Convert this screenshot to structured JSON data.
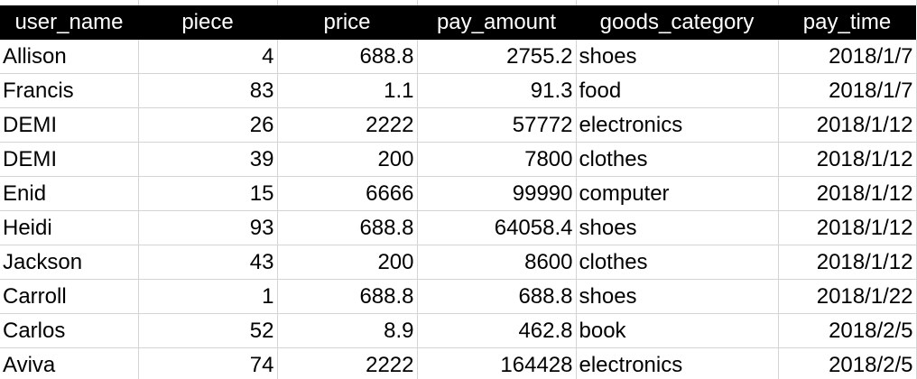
{
  "sheet": {
    "columns": [
      "user_name",
      "piece",
      "price",
      "pay_amount",
      "goods_category",
      "pay_time"
    ],
    "rows": [
      [
        "Allison",
        "4",
        "688.8",
        "2755.2",
        "shoes",
        "2018/1/7"
      ],
      [
        "Francis",
        "83",
        "1.1",
        "91.3",
        "food",
        "2018/1/7"
      ],
      [
        "DEMI",
        "26",
        "2222",
        "57772",
        "electronics",
        "2018/1/12"
      ],
      [
        "DEMI",
        "39",
        "200",
        "7800",
        "clothes",
        "2018/1/12"
      ],
      [
        "Enid",
        "15",
        "6666",
        "99990",
        "computer",
        "2018/1/12"
      ],
      [
        "Heidi",
        "93",
        "688.8",
        "64058.4",
        "shoes",
        "2018/1/12"
      ],
      [
        "Jackson",
        "43",
        "200",
        "8600",
        "clothes",
        "2018/1/12"
      ],
      [
        "Carroll",
        "1",
        "688.8",
        "688.8",
        "shoes",
        "2018/1/22"
      ],
      [
        "Carlos",
        "52",
        "8.9",
        "462.8",
        "book",
        "2018/2/5"
      ],
      [
        "Aviva",
        "74",
        "2222",
        "164428",
        "electronics",
        "2018/2/5"
      ]
    ],
    "colors": {
      "header_background": "#000000",
      "header_text": "#ffffff",
      "gridline": "#d4d4d4"
    }
  }
}
